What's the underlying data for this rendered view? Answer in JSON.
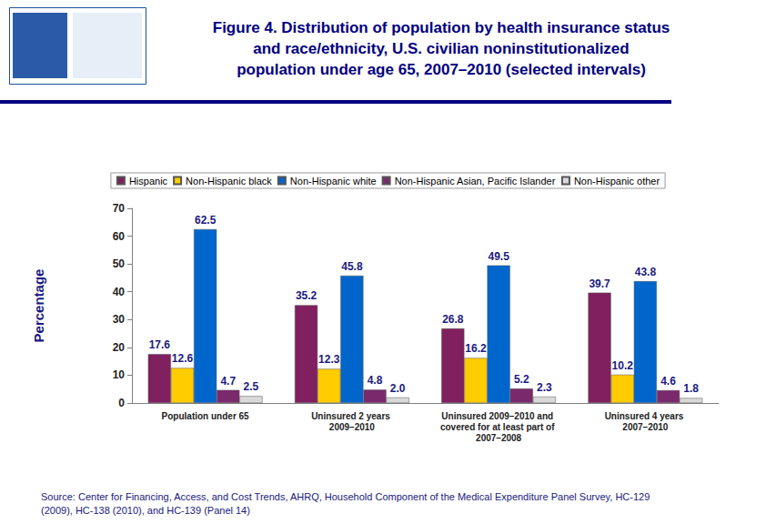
{
  "chart_data": {
    "type": "bar",
    "title": "Figure 4. Distribution of population by health insurance status and race/ethnicity, U.S. civilian noninstitutionalized population under age 65, 2007–2010 (selected intervals)",
    "y_label": "Percentage",
    "source": "Source: Center for Financing, Access, and Cost Trends, AHRQ, Household Component of the Medical Expenditure Panel Survey, HC-129 (2009), HC-138 (2010), and HC-139 (Panel 14)",
    "categories": [
      "Population under 65",
      "Uninsured 2 years 2009–2010",
      "Uninsured 2009–2010 and covered for at least part of 2007–2008",
      "Uninsured 4 years 2007–2010"
    ],
    "series": [
      {
        "name": "Hispanic",
        "color": "#80205f",
        "values": [
          17.6,
          35.2,
          26.8,
          39.7
        ],
        "value_labels": [
          "17.6",
          "35.2",
          "26.8",
          "39.7"
        ]
      },
      {
        "name": "Non-Hispanic black",
        "color": "#ffcc00",
        "values": [
          12.6,
          12.3,
          16.2,
          10.2
        ],
        "value_labels": [
          "12.6",
          "12.3",
          "16.2",
          "10.2"
        ]
      },
      {
        "name": "Non-Hispanic white",
        "color": "#0066cc",
        "values": [
          62.5,
          45.8,
          49.5,
          43.8
        ],
        "value_labels": [
          "62.5",
          "45.8",
          "49.5",
          "43.8"
        ]
      },
      {
        "name": "Non-Hispanic Asian, Pacific Islander",
        "color": "#7a2a6c",
        "values": [
          4.7,
          4.8,
          5.2,
          4.6
        ],
        "value_labels": [
          "4.7",
          "4.8",
          "5.2",
          "4.6"
        ]
      },
      {
        "name": "Non-Hispanic other",
        "color": "#d9d9d9",
        "values": [
          2.5,
          2.0,
          2.3,
          1.8
        ],
        "value_labels": [
          "2.5",
          "2.0",
          "2.3",
          "1.8"
        ]
      }
    ],
    "ylim": [
      0,
      70
    ],
    "yticks": [
      0,
      10,
      20,
      30,
      40,
      50,
      60,
      70
    ],
    "grid": false,
    "legend": "top",
    "data_labels": true
  }
}
